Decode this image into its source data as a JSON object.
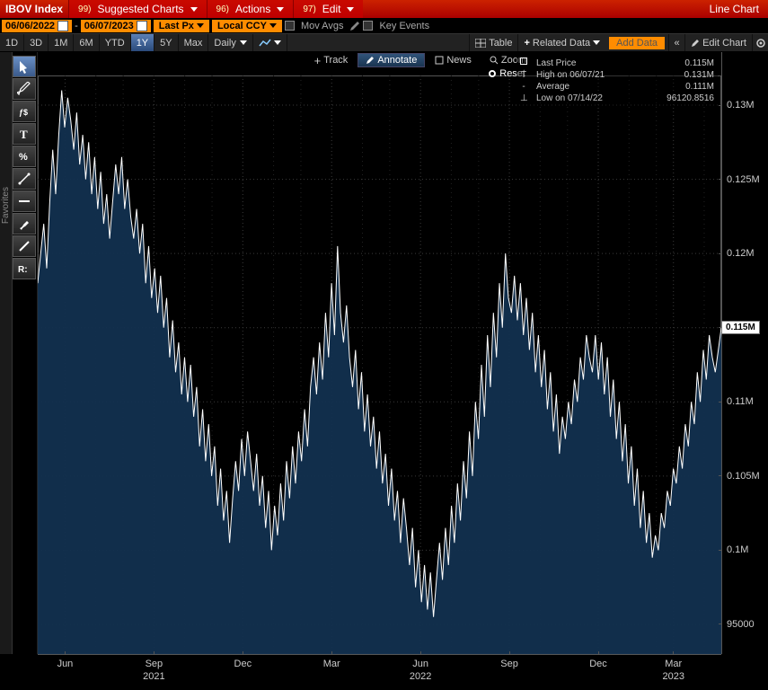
{
  "header": {
    "index_title": "IBOV Index",
    "menus": [
      {
        "num": "99)",
        "label": "Suggested Charts"
      },
      {
        "num": "96)",
        "label": "Actions"
      },
      {
        "num": "97)",
        "label": "Edit"
      }
    ],
    "right": "Line Chart"
  },
  "config": {
    "date_from": "06/06/2022",
    "date_to": "06/07/2023",
    "price": "Last Px",
    "ccy": "Local CCY",
    "mov_avgs": "Mov Avgs",
    "key_events": "Key Events"
  },
  "periods": {
    "items": [
      "1D",
      "3D",
      "1M",
      "6M",
      "YTD",
      "1Y",
      "5Y",
      "Max"
    ],
    "selected": "1Y",
    "freq": "Daily",
    "table": "Table",
    "related": "Related Data",
    "add": "Add Data",
    "edit": "Edit Chart"
  },
  "subtools": {
    "track": "Track",
    "annotate": "Annotate",
    "news": "News",
    "zoom": "Zoom",
    "reset": "Reset"
  },
  "favorites": "Favorites",
  "tools": [
    "cursor",
    "draw",
    "fx",
    "text",
    "percent",
    "trend",
    "hline",
    "brush",
    "lineseg",
    "regression"
  ],
  "legend": {
    "rows": [
      {
        "icon": "sq",
        "label": "Last Price",
        "value": "0.115M"
      },
      {
        "icon": "T",
        "label": "High on 06/07/21",
        "value": "0.131M"
      },
      {
        "icon": "-",
        "label": "Average",
        "value": "0.111M"
      },
      {
        "icon": "L",
        "label": "Low on 07/14/22",
        "value": "96120.8516"
      }
    ]
  },
  "chart": {
    "type": "area-line",
    "background": "#000000",
    "grid_color": "#3a3a3a",
    "line_color": "#ffffff",
    "fill_color": "#12304f",
    "ymin": 93000,
    "ymax": 132000,
    "yticks": [
      {
        "v": 130000,
        "label": "0.13M"
      },
      {
        "v": 125000,
        "label": "0.125M"
      },
      {
        "v": 120000,
        "label": "0.12M"
      },
      {
        "v": 115000,
        "label": "0.115M"
      },
      {
        "v": 110000,
        "label": "0.11M"
      },
      {
        "v": 105000,
        "label": "0.105M"
      },
      {
        "v": 100000,
        "label": "0.1M"
      },
      {
        "v": 95000,
        "label": "95000"
      }
    ],
    "current_marker": {
      "v": 115000,
      "label": "0.115M"
    },
    "xticks": [
      {
        "f": 0.04,
        "label": "Jun"
      },
      {
        "f": 0.17,
        "label": "Sep"
      },
      {
        "f": 0.3,
        "label": "Dec"
      },
      {
        "f": 0.43,
        "label": "Mar"
      },
      {
        "f": 0.56,
        "label": "Jun"
      },
      {
        "f": 0.69,
        "label": "Sep"
      },
      {
        "f": 0.82,
        "label": "Dec"
      },
      {
        "f": 0.93,
        "label": "Mar"
      }
    ],
    "xticks_minor": [
      0.085,
      0.125,
      0.215,
      0.255,
      0.345,
      0.385,
      0.475,
      0.515,
      0.605,
      0.645,
      0.735,
      0.775,
      0.865,
      0.905,
      0.975
    ],
    "xyears": [
      {
        "f": 0.17,
        "label": "2021"
      },
      {
        "f": 0.56,
        "label": "2022"
      },
      {
        "f": 0.93,
        "label": "2023"
      }
    ],
    "series": [
      118000,
      120000,
      122000,
      119000,
      123500,
      127000,
      124000,
      128000,
      131000,
      128500,
      130500,
      129000,
      127000,
      129500,
      126000,
      128000,
      125000,
      127500,
      124000,
      126500,
      123000,
      125500,
      122000,
      124000,
      121000,
      123500,
      126000,
      124000,
      126500,
      123000,
      125000,
      122500,
      121000,
      123000,
      120000,
      122000,
      118000,
      120500,
      117000,
      119000,
      116000,
      118500,
      115000,
      117000,
      113000,
      115500,
      112000,
      114000,
      110500,
      113000,
      110000,
      112500,
      109000,
      111000,
      107000,
      109500,
      106000,
      108500,
      105000,
      107000,
      103000,
      105500,
      102000,
      104000,
      100500,
      103500,
      106000,
      104000,
      107500,
      105000,
      108000,
      106000,
      104000,
      106500,
      103000,
      105000,
      101500,
      104000,
      100000,
      103000,
      101000,
      104500,
      102000,
      106000,
      103500,
      107000,
      104500,
      108000,
      106000,
      109500,
      107000,
      111000,
      113000,
      110500,
      114000,
      111500,
      116000,
      113000,
      118000,
      114500,
      120500,
      116000,
      114000,
      116500,
      113000,
      111000,
      113500,
      109500,
      112000,
      108000,
      110500,
      107000,
      109000,
      105500,
      108000,
      104500,
      106500,
      103000,
      105500,
      102000,
      104000,
      100500,
      103500,
      101500,
      99000,
      101500,
      97500,
      100000,
      96500,
      99000,
      96000,
      98500,
      95500,
      98000,
      100500,
      98000,
      101500,
      99000,
      103000,
      100500,
      104500,
      102000,
      106000,
      103500,
      108000,
      105000,
      110000,
      107500,
      112500,
      109000,
      114500,
      111000,
      116000,
      113000,
      118000,
      115000,
      120000,
      117000,
      116000,
      118500,
      115500,
      118000,
      114500,
      117000,
      113500,
      116000,
      112000,
      114500,
      111000,
      113500,
      109500,
      112000,
      108000,
      110500,
      106500,
      109000,
      107500,
      110000,
      108500,
      111500,
      110000,
      113000,
      111500,
      114500,
      113000,
      112000,
      114500,
      111500,
      114000,
      110500,
      113000,
      109000,
      111500,
      107500,
      110000,
      106000,
      108500,
      104500,
      107000,
      103000,
      105500,
      101500,
      104000,
      100500,
      102500,
      99500,
      101000,
      100000,
      102500,
      101500,
      104000,
      103000,
      105500,
      104500,
      107000,
      105500,
      108500,
      107000,
      110000,
      108500,
      112000,
      110000,
      113500,
      111500,
      114500,
      113000,
      112000,
      113500,
      115000
    ]
  }
}
